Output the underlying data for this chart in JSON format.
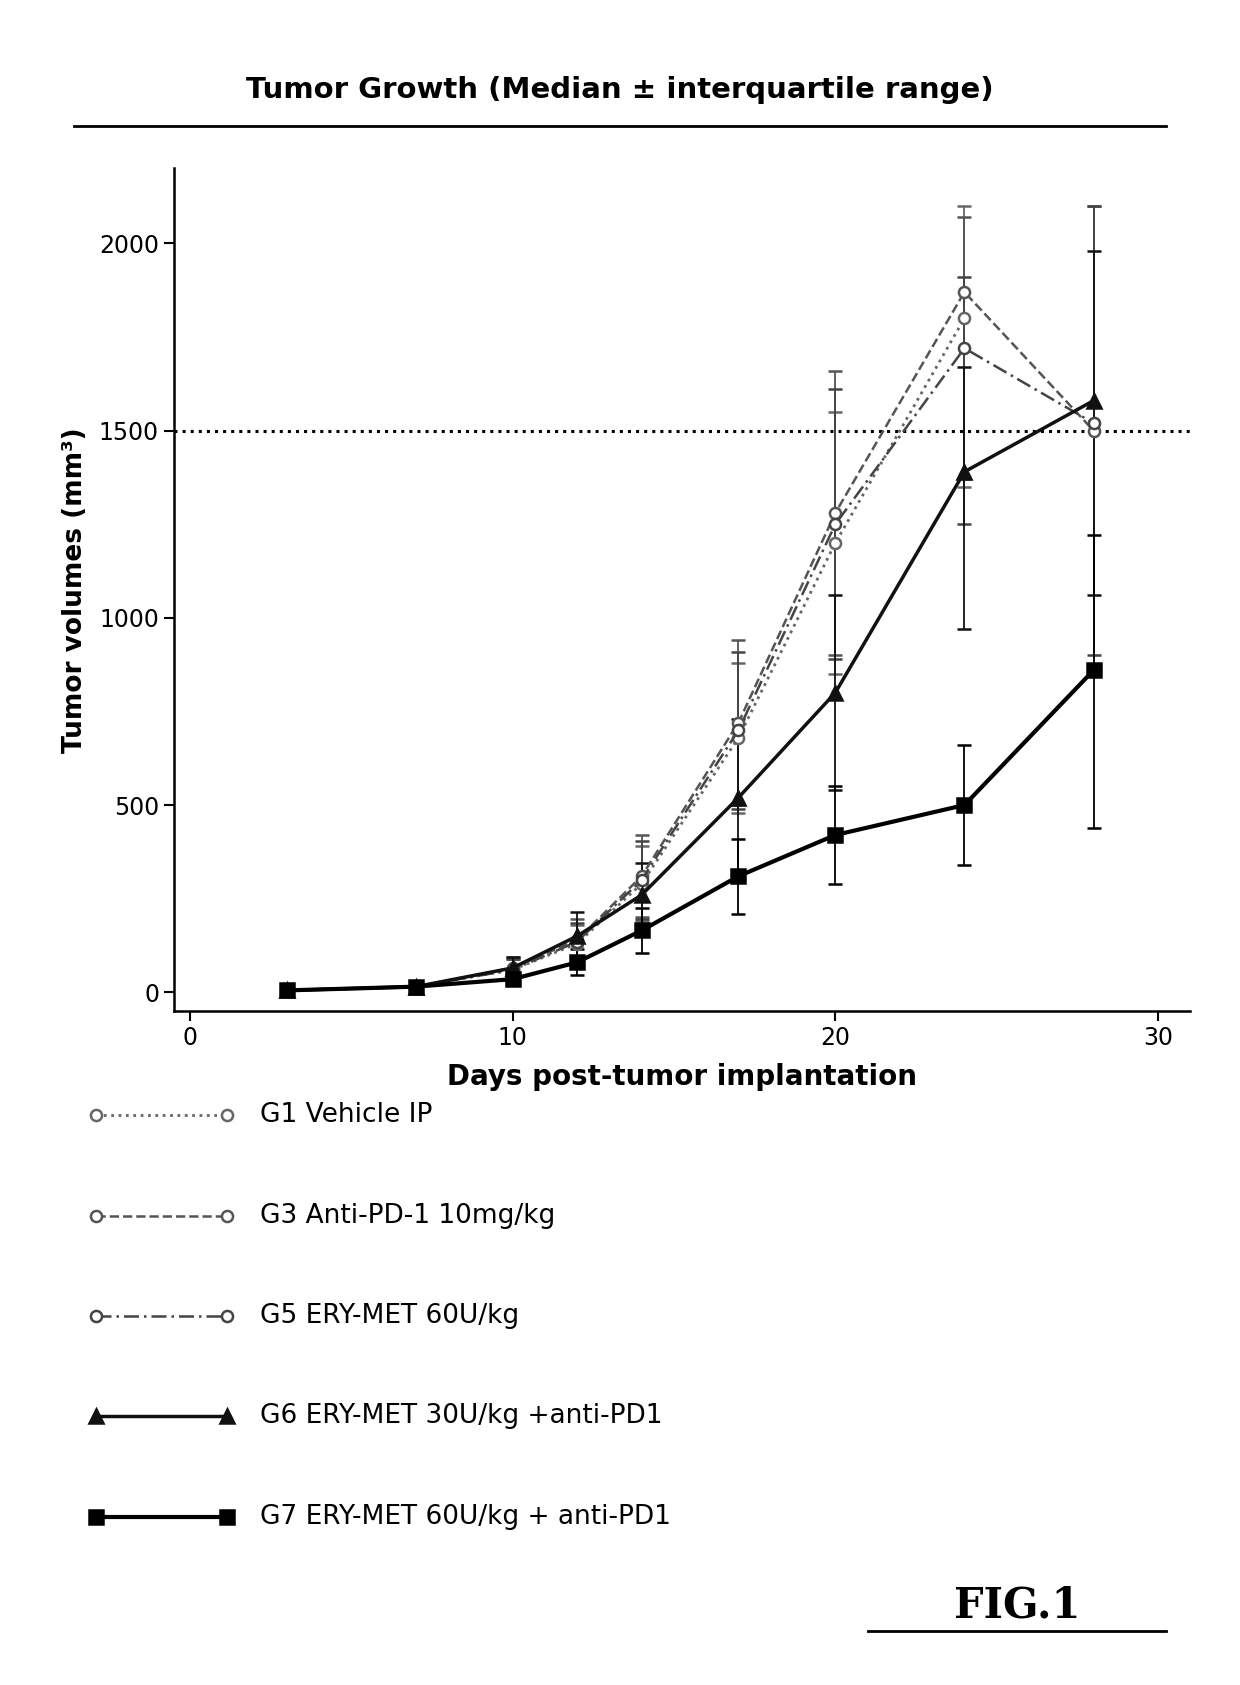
{
  "title": "Tumor Growth (Median ± interquartile range)",
  "xlabel": "Days post-tumor implantation",
  "ylabel": "Tumor volumes (mm³)",
  "xlim": [
    -0.5,
    31
  ],
  "ylim": [
    -50,
    2200
  ],
  "yticks": [
    0,
    500,
    1000,
    1500,
    2000
  ],
  "xticks": [
    0,
    10,
    20,
    30
  ],
  "hline_y": 1500,
  "series": [
    {
      "label": "G1 Vehicle IP",
      "color": "#666666",
      "linestyle": "dotted",
      "linewidth": 2.0,
      "marker": "o",
      "markersize": 8,
      "markerfacecolor": "white",
      "markeredgecolor": "#666666",
      "x": [
        3,
        7,
        10,
        12,
        14,
        17,
        20,
        24
      ],
      "y": [
        5,
        15,
        60,
        130,
        290,
        680,
        1200,
        1800
      ],
      "yerr_low": [
        3,
        8,
        30,
        50,
        100,
        200,
        350,
        450
      ],
      "yerr_high": [
        3,
        8,
        30,
        50,
        100,
        200,
        350,
        300
      ]
    },
    {
      "label": "G3 Anti-PD-1 10mg/kg",
      "color": "#555555",
      "linestyle": "dashed",
      "linewidth": 1.8,
      "marker": "o",
      "markersize": 8,
      "markerfacecolor": "white",
      "markeredgecolor": "#555555",
      "x": [
        3,
        7,
        10,
        12,
        14,
        17,
        20,
        24,
        28
      ],
      "y": [
        5,
        15,
        65,
        140,
        310,
        720,
        1280,
        1870,
        1500
      ],
      "yerr_low": [
        3,
        8,
        30,
        55,
        110,
        220,
        380,
        500,
        650
      ],
      "yerr_high": [
        3,
        8,
        30,
        55,
        110,
        220,
        380,
        200,
        600
      ]
    },
    {
      "label": "G5 ERY-MET 60U/kg",
      "color": "#444444",
      "linestyle": [
        0,
        [
          6,
          2,
          1,
          2
        ]
      ],
      "linewidth": 1.8,
      "marker": "o",
      "markersize": 8,
      "markerfacecolor": "white",
      "markeredgecolor": "#444444",
      "x": [
        3,
        7,
        10,
        12,
        14,
        17,
        20,
        24,
        28
      ],
      "y": [
        5,
        15,
        60,
        135,
        300,
        700,
        1250,
        1720,
        1520
      ],
      "yerr_low": [
        3,
        8,
        28,
        50,
        105,
        210,
        360,
        470,
        620
      ],
      "yerr_high": [
        3,
        8,
        28,
        50,
        105,
        210,
        360,
        190,
        580
      ]
    },
    {
      "label": "G6 ERY-MET 30U/kg +anti-PD1",
      "color": "#111111",
      "linestyle": "solid",
      "linewidth": 2.5,
      "marker": "^",
      "markersize": 10,
      "markerfacecolor": "#111111",
      "markeredgecolor": "#111111",
      "x": [
        3,
        7,
        10,
        12,
        14,
        17,
        20,
        24,
        28
      ],
      "y": [
        5,
        15,
        65,
        150,
        260,
        520,
        800,
        1390,
        1580
      ],
      "yerr_low": [
        3,
        8,
        28,
        65,
        85,
        210,
        260,
        420,
        520
      ],
      "yerr_high": [
        3,
        8,
        28,
        65,
        85,
        210,
        260,
        280,
        400
      ]
    },
    {
      "label": "G7 ERY-MET 60U/kg + anti-PD1",
      "color": "#000000",
      "linestyle": "solid",
      "linewidth": 3.0,
      "marker": "s",
      "markersize": 10,
      "markerfacecolor": "#000000",
      "markeredgecolor": "#000000",
      "x": [
        3,
        7,
        10,
        12,
        14,
        17,
        20,
        24,
        28
      ],
      "y": [
        5,
        15,
        35,
        80,
        165,
        310,
        420,
        500,
        860
      ],
      "yerr_low": [
        3,
        8,
        15,
        35,
        60,
        100,
        130,
        160,
        420
      ],
      "yerr_high": [
        3,
        8,
        15,
        35,
        60,
        100,
        130,
        160,
        360
      ]
    }
  ],
  "legend_series": [
    {
      "label": "G1 Vehicle IP",
      "color": "#666666",
      "linestyle": "dotted",
      "linewidth": 2.0,
      "marker": "o",
      "markersize": 8,
      "markerfacecolor": "white"
    },
    {
      "label": "G3 Anti-PD-1 10mg/kg",
      "color": "#555555",
      "linestyle": "dashed",
      "linewidth": 1.8,
      "marker": "o",
      "markersize": 8,
      "markerfacecolor": "white"
    },
    {
      "label": "G5 ERY-MET 60U/kg",
      "color": "#444444",
      "linestyle": [
        0,
        [
          6,
          2,
          1,
          2
        ]
      ],
      "linewidth": 1.8,
      "marker": "o",
      "markersize": 8,
      "markerfacecolor": "white"
    },
    {
      "label": "G6 ERY-MET 30U/kg +anti-PD1",
      "color": "#111111",
      "linestyle": "solid",
      "linewidth": 2.5,
      "marker": "^",
      "markersize": 10,
      "markerfacecolor": "#111111"
    },
    {
      "label": "G7 ERY-MET 60U/kg + anti-PD1",
      "color": "#000000",
      "linestyle": "solid",
      "linewidth": 3.0,
      "marker": "s",
      "markersize": 10,
      "markerfacecolor": "#000000"
    }
  ],
  "fig1_label": "FIG.1",
  "background_color": "#ffffff"
}
